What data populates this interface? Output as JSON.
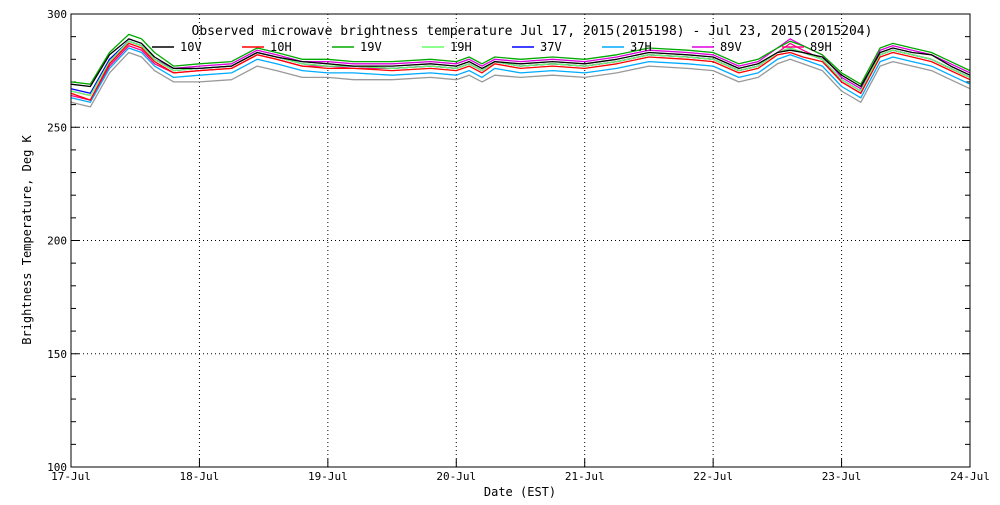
{
  "chart_data": {
    "type": "line",
    "title": "Observed microwave brightness temperature Jul 17, 2015(2015198) - Jul 23, 2015(2015204)",
    "xlabel": "Date (EST)",
    "ylabel": "Brightness Temperature, Deg K",
    "xlim": [
      0,
      7
    ],
    "ylim": [
      100,
      300
    ],
    "grid": true,
    "legend_position": "top",
    "x_ticks": [
      {
        "x": 0,
        "label": "17-Jul"
      },
      {
        "x": 1,
        "label": "18-Jul"
      },
      {
        "x": 2,
        "label": "19-Jul"
      },
      {
        "x": 3,
        "label": "20-Jul"
      },
      {
        "x": 4,
        "label": "21-Jul"
      },
      {
        "x": 5,
        "label": "22-Jul"
      },
      {
        "x": 6,
        "label": "23-Jul"
      },
      {
        "x": 7,
        "label": "24-Jul"
      }
    ],
    "y_ticks": [
      {
        "y": 100,
        "label": "100"
      },
      {
        "y": 150,
        "label": "150"
      },
      {
        "y": 200,
        "label": "200"
      },
      {
        "y": 250,
        "label": "250"
      },
      {
        "y": 300,
        "label": "300"
      }
    ],
    "x": [
      0,
      0.15,
      0.3,
      0.45,
      0.55,
      0.65,
      0.8,
      1.0,
      1.25,
      1.45,
      1.6,
      1.8,
      2.0,
      2.2,
      2.5,
      2.8,
      3.0,
      3.1,
      3.2,
      3.3,
      3.5,
      3.75,
      4.0,
      4.25,
      4.5,
      4.8,
      5.0,
      5.2,
      5.35,
      5.5,
      5.6,
      5.7,
      5.85,
      6.0,
      6.15,
      6.3,
      6.4,
      6.55,
      6.7,
      6.85,
      7.0
    ],
    "series": [
      {
        "name": "10V",
        "color": "#000000",
        "values": [
          269,
          268,
          282,
          289,
          287,
          281,
          276,
          276,
          277,
          283,
          281,
          279,
          278,
          277,
          277,
          278,
          277,
          279,
          276,
          279,
          278,
          279,
          278,
          280,
          283,
          282,
          281,
          276,
          278,
          283,
          284,
          283,
          281,
          273,
          268,
          283,
          285,
          283,
          282,
          277,
          273
        ]
      },
      {
        "name": "10H",
        "color": "#ff0000",
        "values": [
          265,
          262,
          278,
          287,
          285,
          279,
          274,
          275,
          276,
          282,
          280,
          277,
          276,
          276,
          275,
          276,
          275,
          277,
          274,
          278,
          276,
          277,
          276,
          278,
          281,
          280,
          279,
          274,
          276,
          282,
          283,
          281,
          279,
          270,
          265,
          281,
          283,
          281,
          279,
          275,
          271
        ]
      },
      {
        "name": "19V",
        "color": "#00aa00",
        "values": [
          270,
          269,
          283,
          291,
          289,
          283,
          277,
          278,
          279,
          285,
          283,
          280,
          280,
          279,
          279,
          280,
          279,
          281,
          278,
          281,
          280,
          281,
          280,
          282,
          285,
          284,
          283,
          278,
          280,
          285,
          288,
          286,
          282,
          274,
          269,
          285,
          287,
          285,
          283,
          279,
          275
        ]
      },
      {
        "name": "19H",
        "color": "#66ff66",
        "values": [
          266,
          264,
          279,
          288,
          286,
          280,
          275,
          276,
          277,
          283,
          281,
          278,
          277,
          277,
          276,
          277,
          276,
          278,
          275,
          279,
          277,
          278,
          277,
          279,
          282,
          281,
          280,
          275,
          277,
          283,
          285,
          283,
          280,
          271,
          266,
          282,
          284,
          282,
          280,
          276,
          272
        ]
      },
      {
        "name": "37V",
        "color": "#0000ff",
        "values": [
          267,
          265,
          280,
          288,
          286,
          280,
          275,
          276,
          277,
          283,
          281,
          278,
          277,
          277,
          276,
          277,
          276,
          278,
          275,
          279,
          277,
          278,
          277,
          279,
          282,
          281,
          280,
          275,
          277,
          283,
          285,
          283,
          280,
          271,
          266,
          282,
          284,
          282,
          280,
          276,
          272
        ]
      },
      {
        "name": "37H",
        "color": "#00aaff",
        "values": [
          263,
          261,
          276,
          285,
          283,
          277,
          272,
          273,
          274,
          280,
          278,
          275,
          274,
          274,
          273,
          274,
          273,
          275,
          272,
          276,
          274,
          275,
          274,
          276,
          279,
          278,
          277,
          272,
          274,
          280,
          282,
          280,
          277,
          268,
          263,
          279,
          281,
          279,
          277,
          273,
          269
        ]
      },
      {
        "name": "89V",
        "color": "#dd00dd",
        "values": [
          266,
          264,
          279,
          288,
          286,
          280,
          276,
          277,
          278,
          284,
          282,
          279,
          279,
          278,
          278,
          279,
          278,
          280,
          277,
          280,
          279,
          280,
          279,
          281,
          284,
          283,
          282,
          277,
          279,
          285,
          289,
          286,
          282,
          272,
          267,
          284,
          286,
          284,
          282,
          278,
          274
        ]
      },
      {
        "name": "89H",
        "color": "#ff0088",
        "values": [
          264,
          262,
          277,
          286,
          284,
          278,
          274,
          275,
          276,
          282,
          280,
          277,
          277,
          276,
          276,
          277,
          276,
          278,
          275,
          279,
          277,
          278,
          277,
          279,
          282,
          281,
          280,
          275,
          277,
          283,
          287,
          284,
          280,
          270,
          265,
          282,
          284,
          282,
          280,
          276,
          272
        ]
      },
      {
        "name": "",
        "color": "#999999",
        "values": [
          261,
          259,
          274,
          283,
          281,
          275,
          270,
          270,
          271,
          277,
          275,
          272,
          272,
          271,
          271,
          272,
          271,
          273,
          270,
          273,
          272,
          273,
          272,
          274,
          277,
          276,
          275,
          270,
          272,
          278,
          280,
          278,
          275,
          266,
          261,
          277,
          279,
          277,
          275,
          271,
          267
        ]
      }
    ]
  }
}
